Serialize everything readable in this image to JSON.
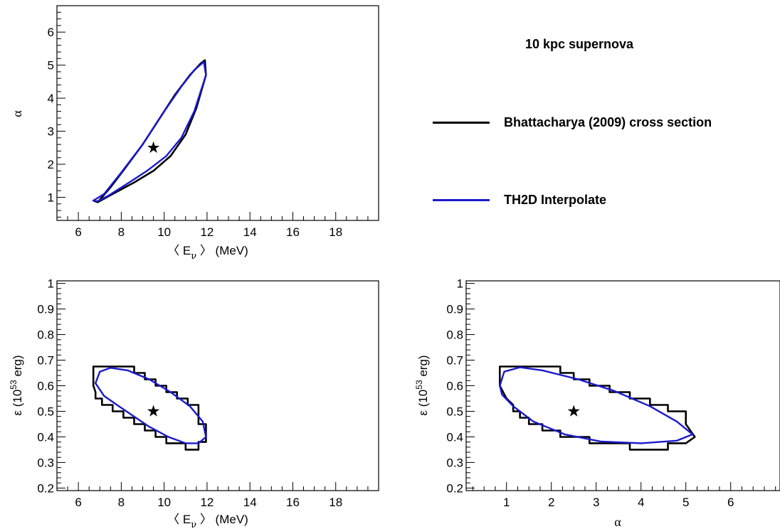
{
  "legend": {
    "title": "10 kpc supernova",
    "entries": [
      {
        "label": "Bhattacharya (2009) cross section",
        "color": "#000000"
      },
      {
        "label": "TH2D Interpolate",
        "color": "#1a1acc"
      }
    ]
  },
  "chart_data": [
    {
      "type": "line",
      "id": "E-alpha",
      "xlabel": "〈 Eν 〉 (MeV)",
      "ylabel": "α",
      "xlim": [
        5,
        20
      ],
      "ylim": [
        0.3,
        6.8
      ],
      "xticks": [
        6,
        8,
        10,
        12,
        14,
        16,
        18
      ],
      "yticks": [
        1,
        2,
        3,
        4,
        5,
        6
      ],
      "best_fit": {
        "x": 9.5,
        "y": 2.5
      },
      "series": [
        {
          "color": "#000000",
          "points": [
            [
              6.7,
              0.9
            ],
            [
              6.9,
              0.85
            ],
            [
              7.5,
              1.3
            ],
            [
              8.2,
              1.9
            ],
            [
              9.0,
              2.6
            ],
            [
              9.8,
              3.4
            ],
            [
              10.5,
              4.1
            ],
            [
              11.2,
              4.7
            ],
            [
              11.7,
              5.05
            ],
            [
              11.9,
              5.15
            ],
            [
              11.95,
              4.7
            ],
            [
              11.5,
              3.7
            ],
            [
              11.0,
              2.9
            ],
            [
              10.3,
              2.25
            ],
            [
              9.5,
              1.8
            ],
            [
              8.6,
              1.45
            ],
            [
              7.6,
              1.1
            ],
            [
              6.9,
              0.85
            ],
            [
              6.7,
              0.9
            ]
          ]
        },
        {
          "color": "#1a1acc",
          "points": [
            [
              6.7,
              0.9
            ],
            [
              7.2,
              1.1
            ],
            [
              8.0,
              1.75
            ],
            [
              9.0,
              2.6
            ],
            [
              10.0,
              3.6
            ],
            [
              10.8,
              4.35
            ],
            [
              11.4,
              4.85
            ],
            [
              11.85,
              5.1
            ],
            [
              11.95,
              4.7
            ],
            [
              11.4,
              3.6
            ],
            [
              10.8,
              2.8
            ],
            [
              10.1,
              2.25
            ],
            [
              9.2,
              1.8
            ],
            [
              8.3,
              1.42
            ],
            [
              7.4,
              1.05
            ],
            [
              6.9,
              0.88
            ],
            [
              6.7,
              0.9
            ]
          ]
        }
      ]
    },
    {
      "type": "line",
      "id": "E-eps",
      "xlabel": "〈 Eν 〉 (MeV)",
      "ylabel": "ε (10^53 erg)",
      "xlim": [
        5,
        20
      ],
      "ylim": [
        0.19,
        1.01
      ],
      "xticks": [
        6,
        8,
        10,
        12,
        14,
        16,
        18
      ],
      "yticks": [
        0.2,
        0.3,
        0.4,
        0.5,
        0.6,
        0.7,
        0.8,
        0.9,
        1
      ],
      "best_fit": {
        "x": 9.5,
        "y": 0.5
      },
      "series": [
        {
          "color": "#000000",
          "points": [
            [
              6.7,
              0.65
            ],
            [
              6.7,
              0.675
            ],
            [
              8.6,
              0.675
            ],
            [
              8.6,
              0.65
            ],
            [
              9.1,
              0.65
            ],
            [
              9.1,
              0.625
            ],
            [
              9.6,
              0.625
            ],
            [
              9.6,
              0.6
            ],
            [
              10.1,
              0.6
            ],
            [
              10.1,
              0.575
            ],
            [
              10.6,
              0.575
            ],
            [
              10.6,
              0.55
            ],
            [
              11.1,
              0.55
            ],
            [
              11.1,
              0.525
            ],
            [
              11.6,
              0.525
            ],
            [
              11.6,
              0.45
            ],
            [
              11.95,
              0.45
            ],
            [
              11.95,
              0.38
            ],
            [
              11.6,
              0.38
            ],
            [
              11.6,
              0.35
            ],
            [
              11.0,
              0.35
            ],
            [
              11.0,
              0.375
            ],
            [
              10.1,
              0.375
            ],
            [
              10.1,
              0.4
            ],
            [
              9.6,
              0.4
            ],
            [
              9.6,
              0.425
            ],
            [
              9.1,
              0.425
            ],
            [
              9.1,
              0.45
            ],
            [
              8.6,
              0.45
            ],
            [
              8.6,
              0.475
            ],
            [
              8.1,
              0.475
            ],
            [
              8.1,
              0.5
            ],
            [
              7.6,
              0.5
            ],
            [
              7.6,
              0.525
            ],
            [
              7.1,
              0.525
            ],
            [
              7.1,
              0.55
            ],
            [
              6.8,
              0.55
            ],
            [
              6.8,
              0.575
            ],
            [
              6.7,
              0.6
            ],
            [
              6.7,
              0.65
            ]
          ]
        },
        {
          "color": "#1a1acc",
          "points": [
            [
              6.8,
              0.61
            ],
            [
              7.0,
              0.655
            ],
            [
              7.5,
              0.67
            ],
            [
              8.3,
              0.66
            ],
            [
              9.3,
              0.625
            ],
            [
              10.3,
              0.575
            ],
            [
              11.2,
              0.52
            ],
            [
              11.8,
              0.46
            ],
            [
              11.95,
              0.4
            ],
            [
              11.6,
              0.375
            ],
            [
              11.0,
              0.375
            ],
            [
              10.2,
              0.4
            ],
            [
              9.3,
              0.44
            ],
            [
              8.5,
              0.485
            ],
            [
              7.8,
              0.525
            ],
            [
              7.2,
              0.56
            ],
            [
              6.8,
              0.61
            ]
          ]
        }
      ]
    },
    {
      "type": "line",
      "id": "alpha-eps",
      "xlabel": "α",
      "ylabel": "ε (10^53 erg)",
      "xlim": [
        0.1,
        7.1
      ],
      "ylim": [
        0.19,
        1.01
      ],
      "xticks": [
        1,
        2,
        3,
        4,
        5,
        6
      ],
      "yticks": [
        0.2,
        0.3,
        0.4,
        0.5,
        0.6,
        0.7,
        0.8,
        0.9,
        1
      ],
      "best_fit": {
        "x": 2.5,
        "y": 0.5
      },
      "series": [
        {
          "color": "#000000",
          "points": [
            [
              0.85,
              0.65
            ],
            [
              0.85,
              0.675
            ],
            [
              2.2,
              0.675
            ],
            [
              2.2,
              0.65
            ],
            [
              2.5,
              0.65
            ],
            [
              2.5,
              0.625
            ],
            [
              2.85,
              0.625
            ],
            [
              2.85,
              0.6
            ],
            [
              3.3,
              0.6
            ],
            [
              3.3,
              0.575
            ],
            [
              3.75,
              0.575
            ],
            [
              3.75,
              0.55
            ],
            [
              4.2,
              0.55
            ],
            [
              4.2,
              0.525
            ],
            [
              4.6,
              0.525
            ],
            [
              4.6,
              0.5
            ],
            [
              5.0,
              0.5
            ],
            [
              5.0,
              0.45
            ],
            [
              5.2,
              0.4
            ],
            [
              5.0,
              0.375
            ],
            [
              4.6,
              0.375
            ],
            [
              4.6,
              0.35
            ],
            [
              3.75,
              0.35
            ],
            [
              3.75,
              0.375
            ],
            [
              2.85,
              0.375
            ],
            [
              2.85,
              0.4
            ],
            [
              2.2,
              0.4
            ],
            [
              2.2,
              0.425
            ],
            [
              1.8,
              0.425
            ],
            [
              1.8,
              0.45
            ],
            [
              1.5,
              0.45
            ],
            [
              1.5,
              0.475
            ],
            [
              1.3,
              0.475
            ],
            [
              1.3,
              0.5
            ],
            [
              1.15,
              0.5
            ],
            [
              1.15,
              0.525
            ],
            [
              1.0,
              0.55
            ],
            [
              0.85,
              0.6
            ],
            [
              0.85,
              0.65
            ]
          ]
        },
        {
          "color": "#1a1acc",
          "points": [
            [
              0.85,
              0.6
            ],
            [
              0.95,
              0.655
            ],
            [
              1.3,
              0.672
            ],
            [
              1.8,
              0.66
            ],
            [
              2.6,
              0.625
            ],
            [
              3.4,
              0.58
            ],
            [
              4.2,
              0.52
            ],
            [
              4.8,
              0.46
            ],
            [
              5.15,
              0.41
            ],
            [
              4.8,
              0.385
            ],
            [
              4.0,
              0.375
            ],
            [
              3.1,
              0.382
            ],
            [
              2.3,
              0.41
            ],
            [
              1.6,
              0.46
            ],
            [
              1.15,
              0.52
            ],
            [
              0.9,
              0.565
            ],
            [
              0.85,
              0.6
            ]
          ]
        }
      ]
    }
  ]
}
